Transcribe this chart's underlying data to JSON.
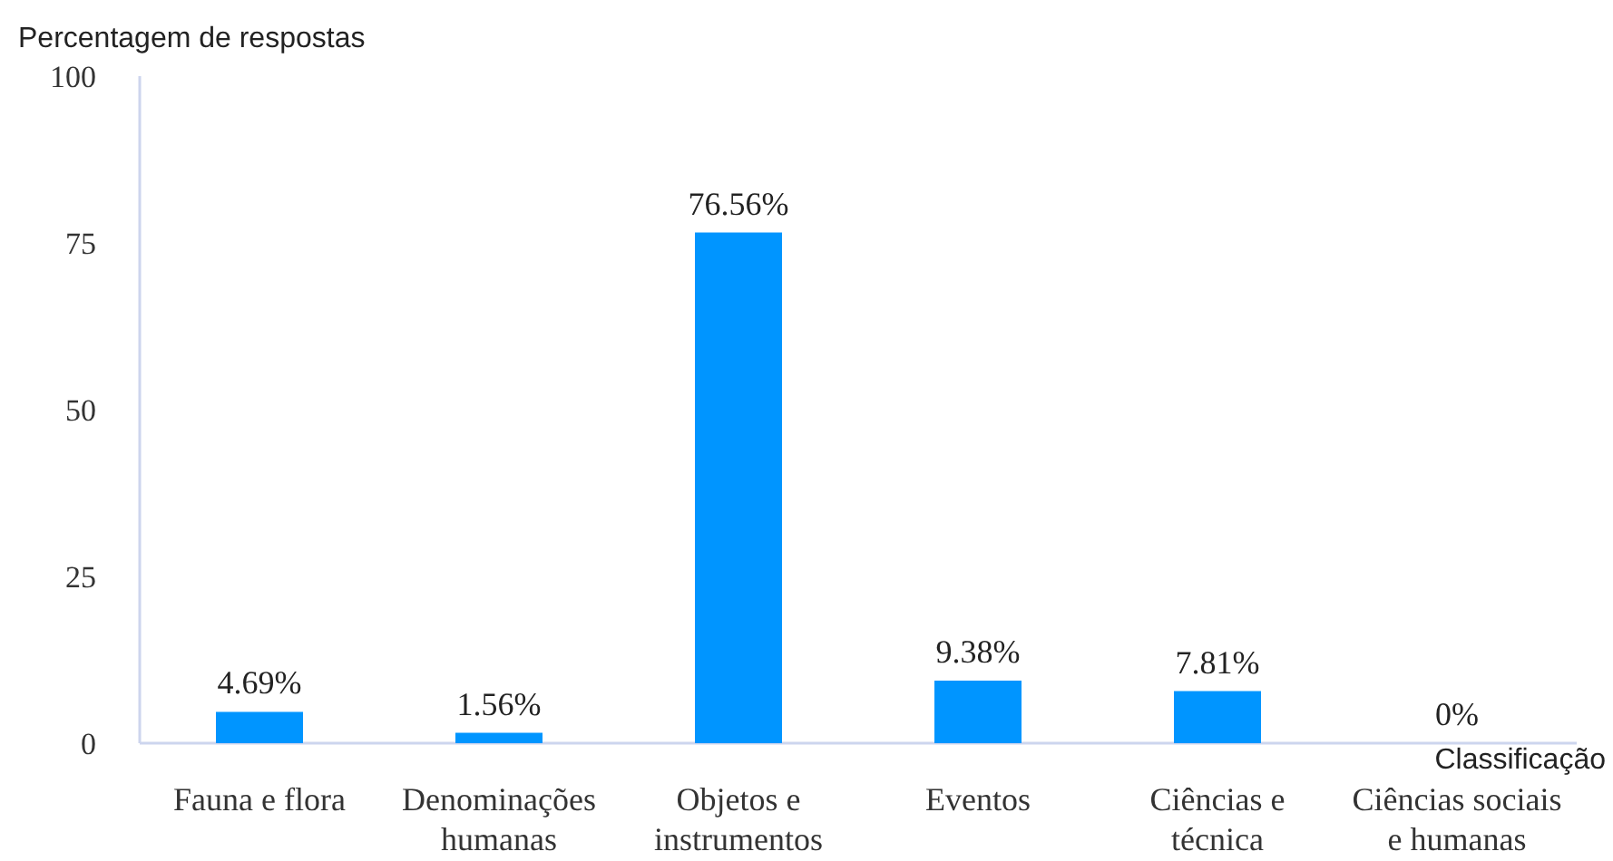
{
  "chart_data": {
    "type": "bar",
    "ylabel": "Percentagem de respostas",
    "xlabel": "Classificação",
    "categories": [
      "Fauna e flora",
      "Denominações humanas",
      "Objetos e instrumentos",
      "Eventos",
      "Ciências e técnica",
      "Ciências sociais e humanas"
    ],
    "values": [
      4.69,
      1.56,
      76.56,
      9.38,
      7.81,
      0
    ],
    "color": "#0095ff",
    "value_labels": [
      "4.69%",
      "1.56%",
      "76.56%",
      "9.38%",
      "7.81%",
      "0%"
    ],
    "ylim": [
      0,
      100
    ],
    "yticks": [
      0,
      25,
      50,
      75,
      100
    ],
    "grid": false
  }
}
